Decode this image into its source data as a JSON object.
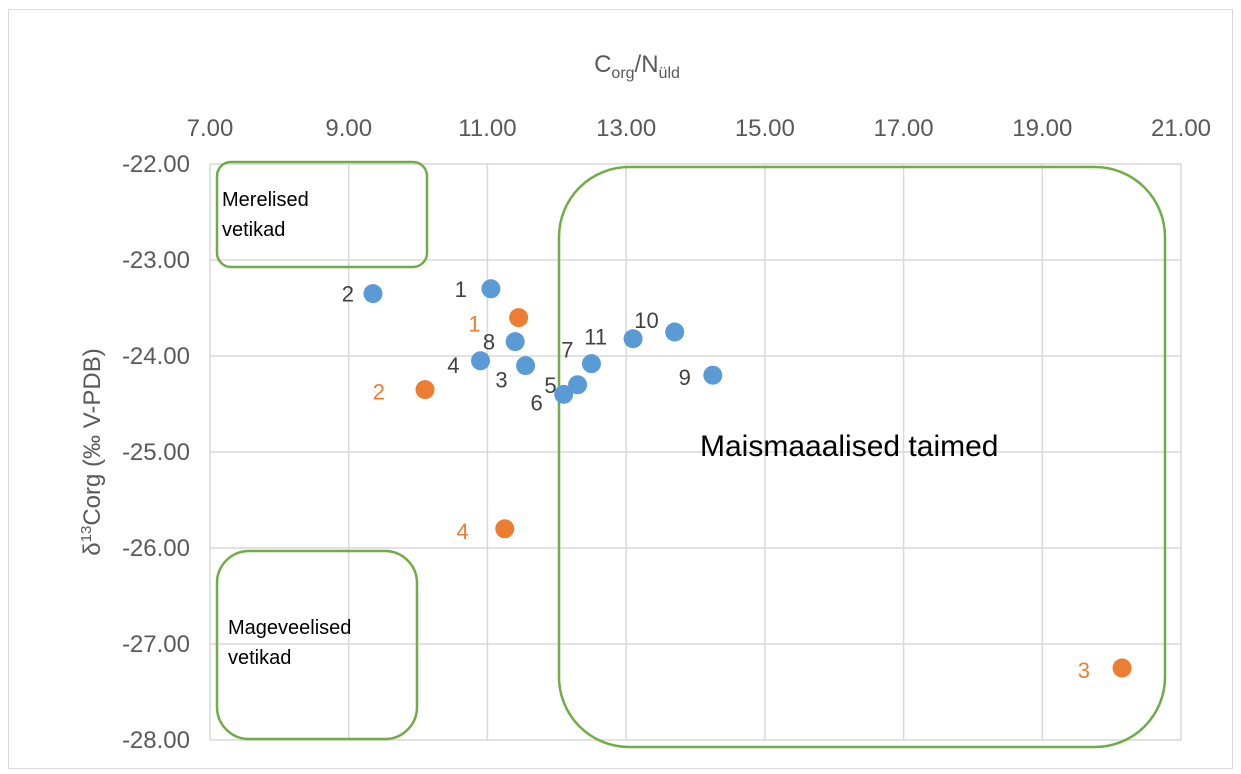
{
  "chart_data": {
    "type": "scatter",
    "title": "",
    "xlabel": {
      "main": "C",
      "sub1": "org",
      "sep": "/N",
      "sub2": "üld"
    },
    "ylabel": {
      "pre": "δ",
      "sup": "13",
      "post": "Corg (‰ V-PDB)"
    },
    "xlim": [
      7,
      21
    ],
    "ylim": [
      -28,
      -22
    ],
    "x_axis_position": "top",
    "grid": true,
    "x_ticks": [
      "7.00",
      "9.00",
      "11.00",
      "13.00",
      "15.00",
      "17.00",
      "19.00",
      "21.00"
    ],
    "y_ticks": [
      "-22.00",
      "-23.00",
      "-24.00",
      "-25.00",
      "-26.00",
      "-27.00",
      "-28.00"
    ],
    "series": [
      {
        "color": "#5B9BD5",
        "points": [
          {
            "label": "1",
            "x": 11.05,
            "y": -23.3
          },
          {
            "label": "2",
            "x": 9.35,
            "y": -23.35
          },
          {
            "label": "3",
            "x": 11.55,
            "y": -24.1
          },
          {
            "label": "4",
            "x": 10.9,
            "y": -24.05
          },
          {
            "label": "5",
            "x": 12.3,
            "y": -24.3
          },
          {
            "label": "6",
            "x": 12.1,
            "y": -24.4
          },
          {
            "label": "7",
            "x": 12.5,
            "y": -24.08
          },
          {
            "label": "8",
            "x": 11.4,
            "y": -23.85
          },
          {
            "label": "9",
            "x": 14.25,
            "y": -24.2
          },
          {
            "label": "10",
            "x": 13.7,
            "y": -23.75
          },
          {
            "label": "11",
            "x": 13.1,
            "y": -23.82
          }
        ]
      },
      {
        "color": "#ED7D31",
        "points": [
          {
            "label": "1",
            "x": 11.45,
            "y": -23.6
          },
          {
            "label": "2",
            "x": 10.1,
            "y": -24.35
          },
          {
            "label": "3",
            "x": 20.15,
            "y": -27.25
          },
          {
            "label": "4",
            "x": 11.25,
            "y": -25.8
          }
        ]
      }
    ],
    "regions": [
      {
        "name": "merelised",
        "lines": [
          "Merelised",
          "vetikad"
        ],
        "color": "#70AD47"
      },
      {
        "name": "mageveelised",
        "lines": [
          "Mageveelised",
          "vetikad"
        ],
        "color": "#70AD47"
      },
      {
        "name": "maismaa",
        "lines": [
          "Maismaaalised taimed"
        ],
        "color": "#70AD47"
      }
    ]
  }
}
